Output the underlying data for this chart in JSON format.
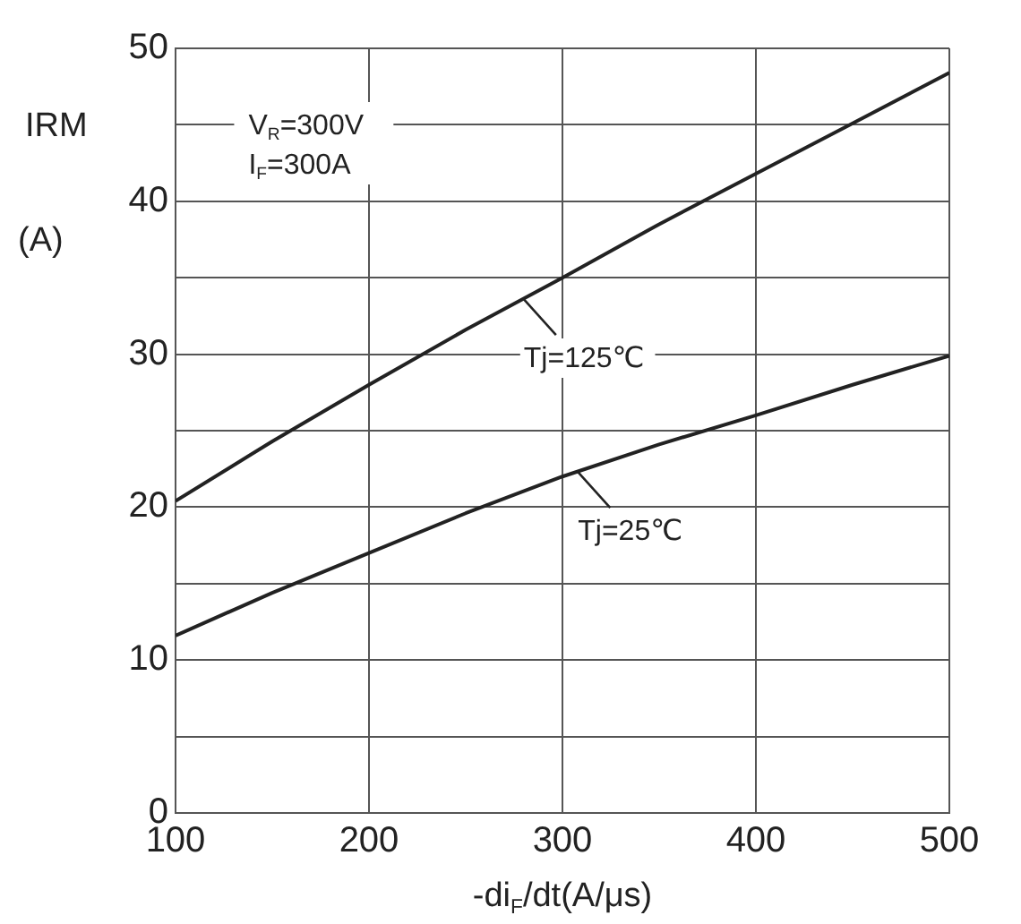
{
  "chart_data": {
    "type": "line",
    "xlabel": "-di$_{F}$/dt(A/μs)",
    "ylabel": "IRM (A)",
    "x": [
      100,
      150,
      200,
      250,
      300,
      350,
      400,
      450,
      500
    ],
    "series": [
      {
        "name": null,
        "color": "#222222",
        "values": [
          20.4,
          24.3,
          28.0,
          31.6,
          35.0,
          38.5,
          41.8,
          45.1,
          48.4
        ]
      },
      {
        "name": null,
        "color": "#222222",
        "values": [
          11.6,
          14.4,
          17.0,
          19.6,
          22.0,
          24.1,
          26.0,
          28.0,
          29.9
        ]
      }
    ],
    "xlim": [
      100,
      500
    ],
    "xticks": [
      100,
      200,
      300,
      400,
      500
    ],
    "ylim": [
      0,
      50
    ],
    "yticks": [
      0,
      {
        "value": 5,
        "label": null
      },
      10,
      {
        "value": 15,
        "label": null
      },
      20,
      {
        "value": 25,
        "label": null
      },
      30,
      {
        "value": 35,
        "label": null
      },
      40,
      {
        "value": 45,
        "label": null
      },
      50
    ],
    "grid": true,
    "legend": false,
    "marker": "none",
    "line_style": "solid",
    "annotations": [
      "V$_{R}$=300V",
      "I$_{F}$=300A",
      {
        "text": "Tj=125℃",
        "x": 280,
        "y": 33.6
      },
      {
        "text": "Tj=25℃",
        "x": 308,
        "y": 22.3
      }
    ]
  }
}
